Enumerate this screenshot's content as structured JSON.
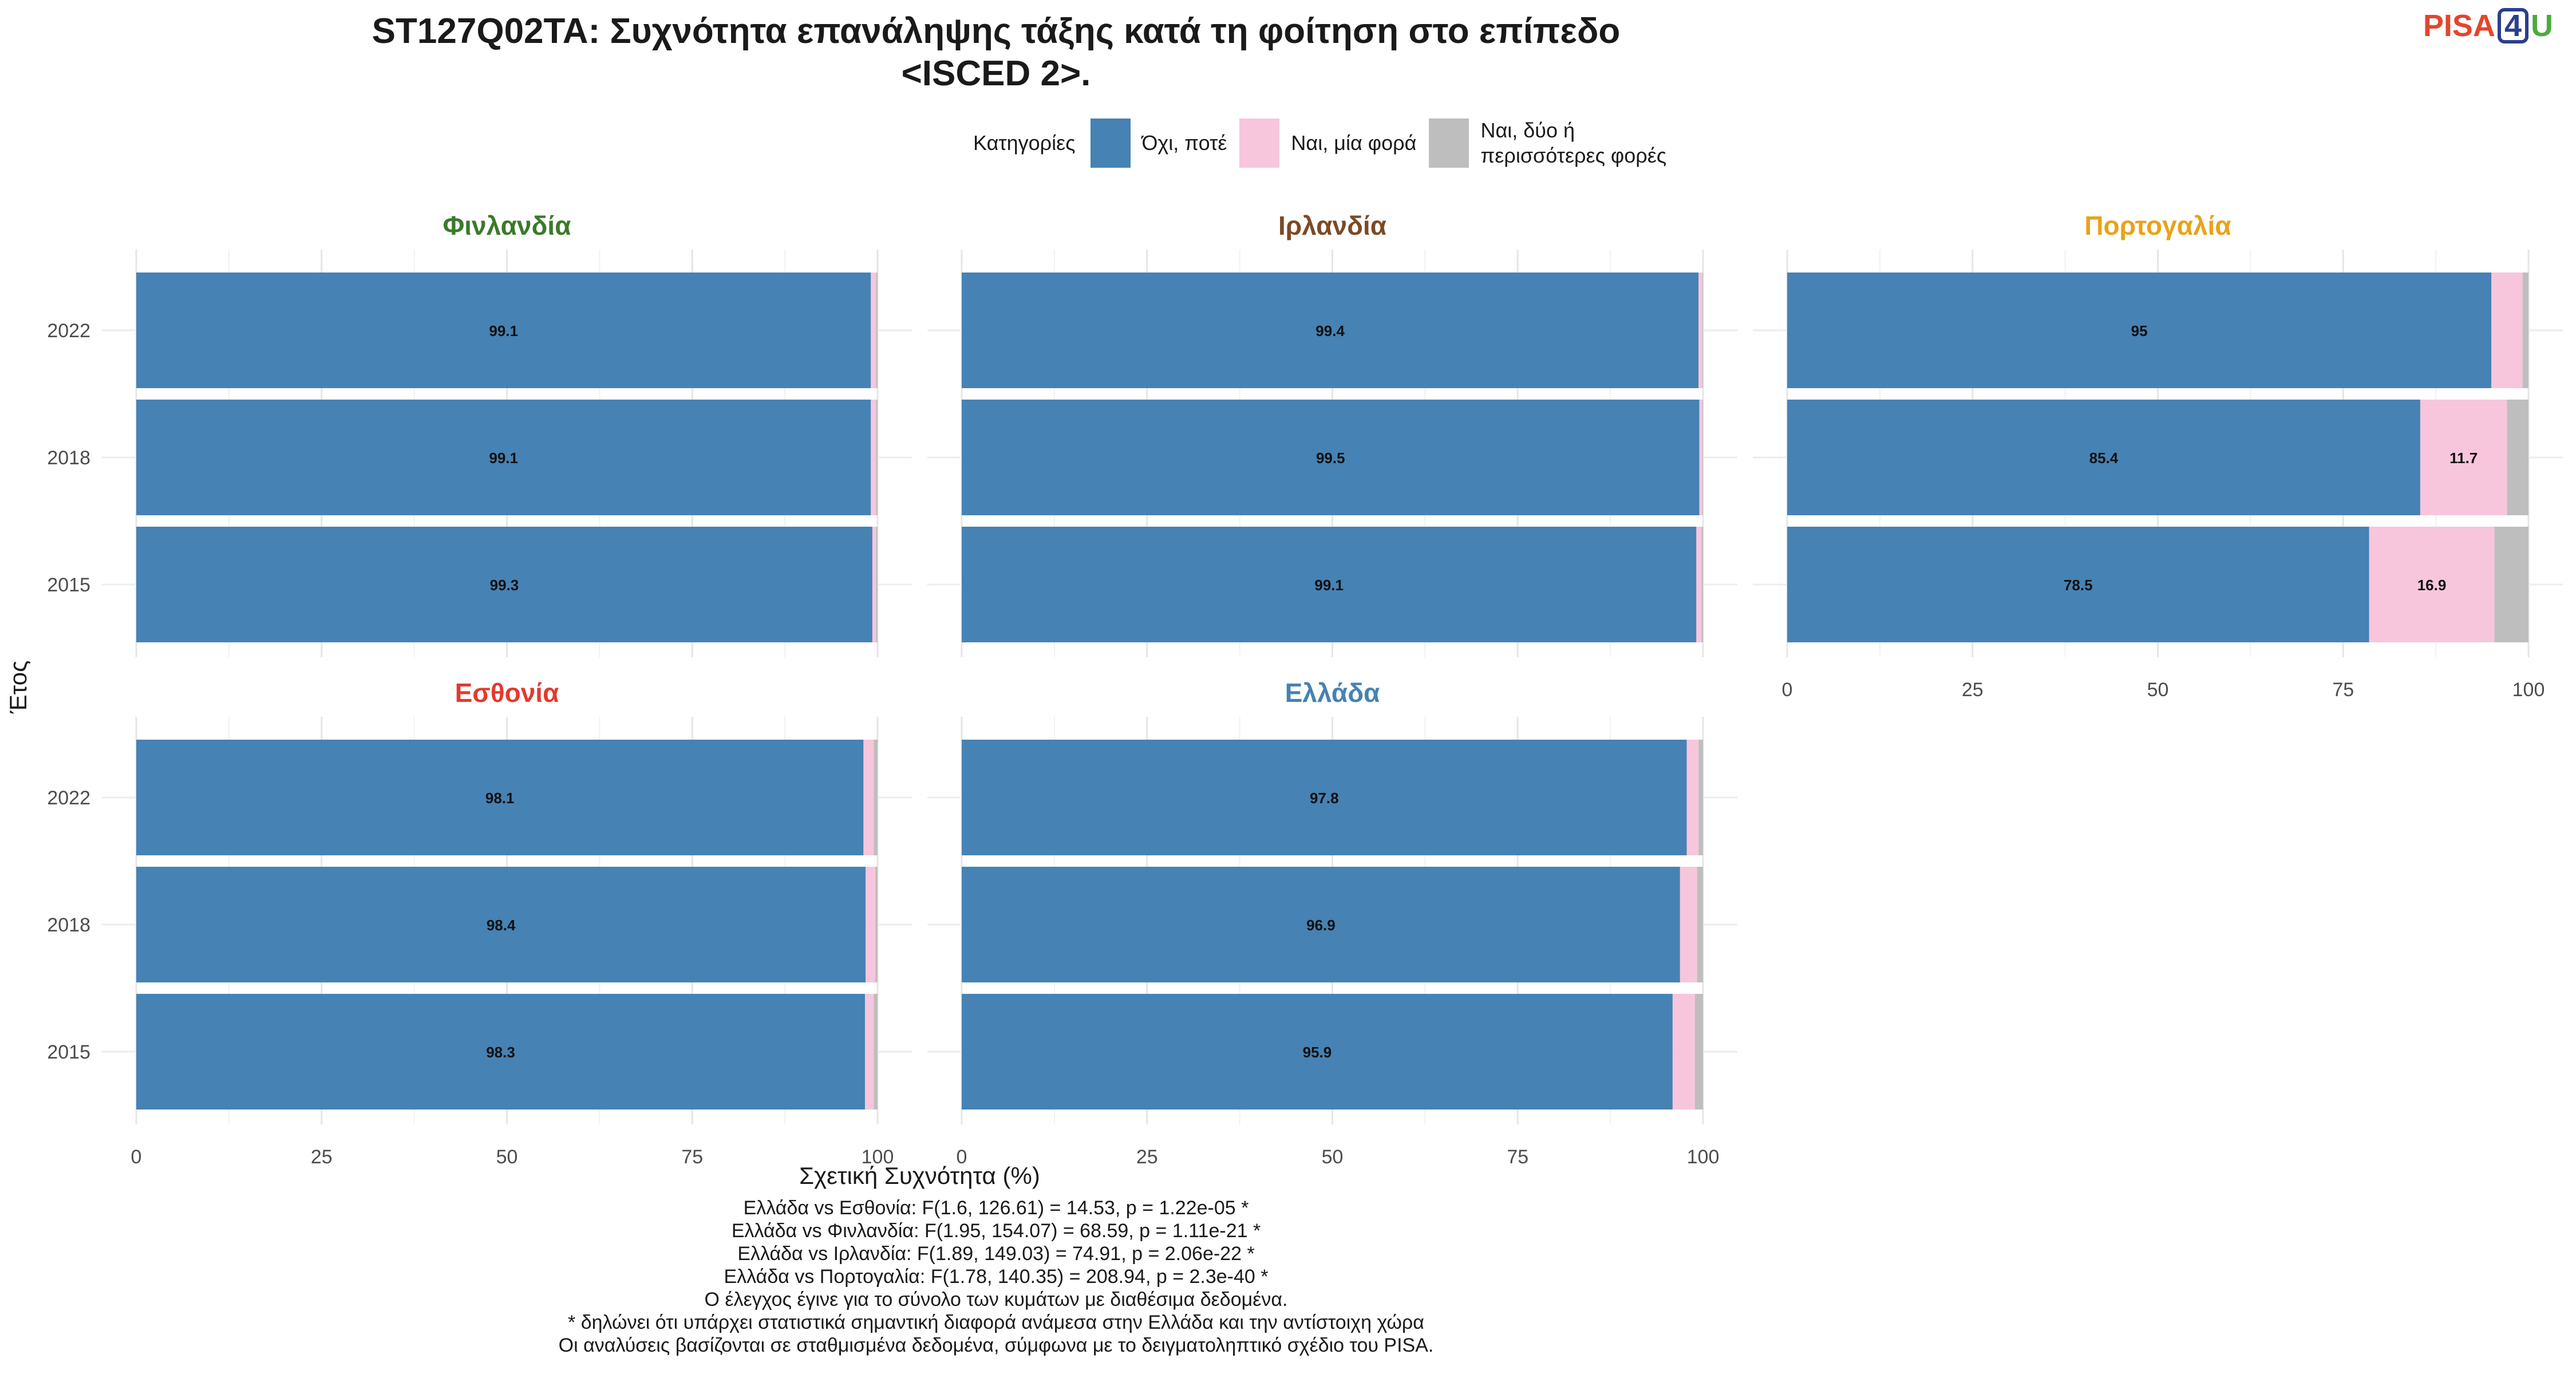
{
  "title_lines": [
    "ST127Q02TA: Συχνότητα επανάληψης τάξης κατά τη φοίτηση στο επίπεδο",
    "<ISCED 2>."
  ],
  "logo": {
    "text1": "PISA",
    "text2": "4",
    "text3": "U"
  },
  "legend": {
    "title": "Κατηγορίες",
    "items": [
      {
        "label": "Όχι, ποτέ",
        "color": "#4682b4"
      },
      {
        "label": "Ναι, μία φορά",
        "color": "#f7c6dc"
      },
      {
        "label": "Ναι, δύο ή περισσότερες φορές",
        "color": "#bebebe"
      }
    ]
  },
  "chart_data": {
    "type": "bar",
    "orientation": "horizontal",
    "stacked": true,
    "xlabel": "Σχετική Συχνότητα (%)",
    "ylabel": "Έτος",
    "xlim": [
      0,
      100
    ],
    "xticks": [
      0,
      25,
      50,
      75,
      100
    ],
    "categories": [
      "2022",
      "2018",
      "2015"
    ],
    "series_names": [
      "Όχι, ποτέ",
      "Ναι, μία φορά",
      "Ναι, δύο ή περισσότερες φορές"
    ],
    "colors": [
      "#4682b4",
      "#f7c6dc",
      "#bebebe"
    ],
    "panels": [
      {
        "country": "Φινλανδία",
        "color": "#3a7a2a",
        "values": {
          "2022": [
            99.1,
            0.7,
            0.2
          ],
          "2018": [
            99.1,
            0.7,
            0.2
          ],
          "2015": [
            99.3,
            0.5,
            0.2
          ]
        },
        "labels": {
          "2022": [
            "99.1",
            "",
            ""
          ],
          "2018": [
            "99.1",
            "",
            ""
          ],
          "2015": [
            "99.3",
            "",
            ""
          ]
        }
      },
      {
        "country": "Ιρλανδία",
        "color": "#7b4a26",
        "values": {
          "2022": [
            99.4,
            0.5,
            0.1
          ],
          "2018": [
            99.5,
            0.4,
            0.1
          ],
          "2015": [
            99.1,
            0.7,
            0.2
          ]
        },
        "labels": {
          "2022": [
            "99.4",
            "",
            ""
          ],
          "2018": [
            "99.5",
            "",
            ""
          ],
          "2015": [
            "99.1",
            "",
            ""
          ]
        }
      },
      {
        "country": "Πορτογαλία",
        "color": "#e8a317",
        "values": {
          "2022": [
            95,
            4.2,
            0.8
          ],
          "2018": [
            85.4,
            11.7,
            2.9
          ],
          "2015": [
            78.5,
            16.9,
            4.6
          ]
        },
        "labels": {
          "2022": [
            "95",
            "",
            ""
          ],
          "2018": [
            "85.4",
            "11.7",
            ""
          ],
          "2015": [
            "78.5",
            "16.9",
            ""
          ]
        }
      },
      {
        "country": "Εσθονία",
        "color": "#e23a2e",
        "values": {
          "2022": [
            98.1,
            1.4,
            0.5
          ],
          "2018": [
            98.4,
            1.3,
            0.3
          ],
          "2015": [
            98.3,
            1.2,
            0.5
          ]
        },
        "labels": {
          "2022": [
            "98.1",
            "",
            ""
          ],
          "2018": [
            "98.4",
            "",
            ""
          ],
          "2015": [
            "98.3",
            "",
            ""
          ]
        }
      },
      {
        "country": "Ελλάδα",
        "color": "#4682b4",
        "values": {
          "2022": [
            97.8,
            1.6,
            0.6
          ],
          "2018": [
            96.9,
            2.3,
            0.8
          ],
          "2015": [
            95.9,
            3.0,
            1.1
          ]
        },
        "labels": {
          "2022": [
            "97.8",
            "",
            ""
          ],
          "2018": [
            "96.9",
            "",
            ""
          ],
          "2015": [
            "95.9",
            "",
            ""
          ]
        }
      }
    ]
  },
  "notes": [
    "Ελλάδα vs Εσθονία: F(1.6, 126.61) = 14.53, p = 1.22e-05 *",
    "Ελλάδα vs Φινλανδία: F(1.95, 154.07) = 68.59, p = 1.11e-21 *",
    "Ελλάδα vs Ιρλανδία: F(1.89, 149.03) = 74.91, p = 2.06e-22 *",
    "Ελλάδα vs Πορτογαλία: F(1.78, 140.35) = 208.94, p = 2.3e-40 *",
    "Ο έλεγχος έγινε για το σύνολο των κυμάτων με διαθέσιμα δεδομένα.",
    "* δηλώνει ότι υπάρχει στατιστικά σημαντική διαφορά ανάμεσα στην Ελλάδα και την αντίστοιχη χώρα",
    "Οι αναλύσεις βασίζονται σε σταθμισμένα δεδομένα, σύμφωνα με το δειγματοληπτικό σχέδιο του PISA."
  ]
}
